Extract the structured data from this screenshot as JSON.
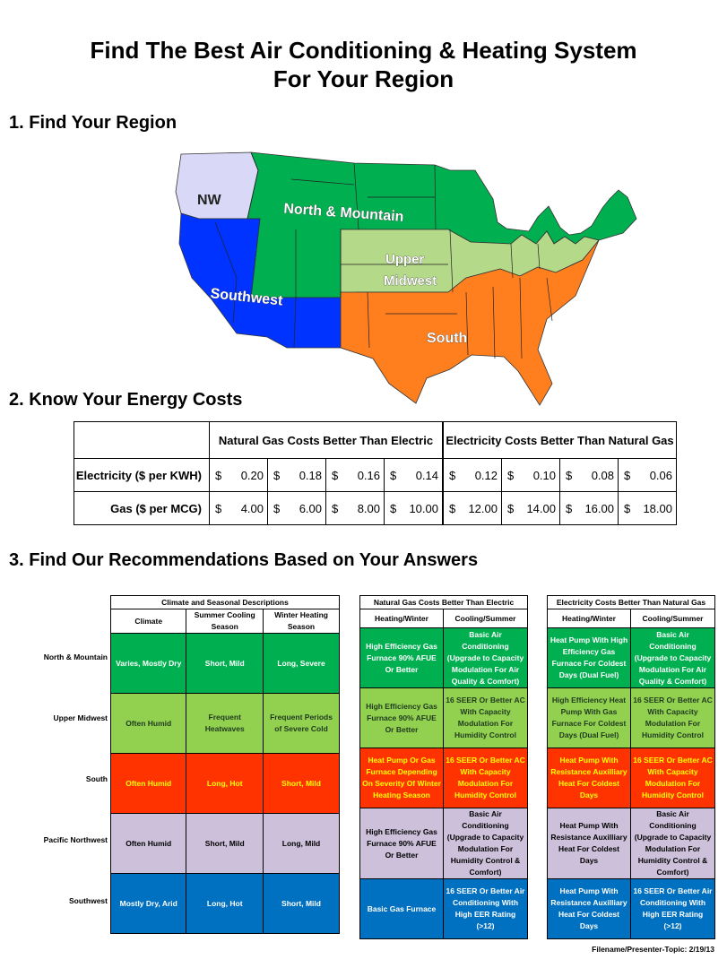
{
  "title_line1": "Find The Best Air Conditioning & Heating System",
  "title_line2": "For Your Region",
  "section1": "1. Find Your Region",
  "section2": "2. Know Your Energy Costs",
  "section3": "3. Find Our Recommendations Based on Your Answers",
  "map": {
    "labels": [
      "NW",
      "North & Mountain",
      "Upper Midwest",
      "Southwest",
      "South"
    ],
    "colors": {
      "nw": "#d9d9f7",
      "north": "#00b050",
      "midwest": "#b4d989",
      "southwest": "#0033ff",
      "south": "#ff7f1f"
    }
  },
  "costs": {
    "header_gas": "Natural Gas Costs Better Than Electric",
    "header_elec": "Electricity Costs Better Than Natural Gas",
    "currency": "$",
    "rows": [
      {
        "label": "Electricity ($ per KWH)",
        "values": [
          "0.20",
          "0.18",
          "0.16",
          "0.14",
          "0.12",
          "0.10",
          "0.08",
          "0.06"
        ]
      },
      {
        "label": "Gas ($ per MCG)",
        "values": [
          "4.00",
          "6.00",
          "8.00",
          "10.00",
          "12.00",
          "14.00",
          "16.00",
          "18.00"
        ]
      }
    ]
  },
  "rec": {
    "climate_header": "Climate and Seasonal Descriptions",
    "climate_cols": [
      "Climate",
      "Summer Cooling Season",
      "Winter Heating Season"
    ],
    "gas_header": "Natural Gas Costs Better Than Electric",
    "elec_header": "Electricity Costs Better Than Natural Gas",
    "hv_cols": [
      "Heating/Winter",
      "Cooling/Summer"
    ],
    "regions": [
      {
        "name": "North & Mountain",
        "cls": "g",
        "climate": [
          "Varies, Mostly Dry",
          "Short, Mild",
          "Long, Severe"
        ],
        "gas": [
          "High Efficiency Gas Furnace 90% AFUE Or Better",
          "Basic Air Conditioning (Upgrade to Capacity Modulation For Air Quality & Comfort)"
        ],
        "elec": [
          "Heat Pump With High Efficiency Gas Furnace For Coldest Days (Dual Fuel)",
          "Basic Air Conditioning (Upgrade to Capacity Modulation For Air Quality & Comfort)"
        ]
      },
      {
        "name": "Upper Midwest",
        "cls": "lg",
        "climate": [
          "Often Humid",
          "Frequent Heatwaves",
          "Frequent Periods of Severe Cold"
        ],
        "gas": [
          "High Efficiency Gas Furnace 90% AFUE Or Better",
          "16 SEER Or Better AC With Capacity Modulation For Humidity Control"
        ],
        "elec": [
          "High Efficiency Heat Pump With Gas Furnace For Coldest Days (Dual Fuel)",
          "16 SEER Or Better AC With Capacity Modulation For Humidity Control"
        ]
      },
      {
        "name": "South",
        "cls": "o",
        "climate": [
          "Often Humid",
          "Long, Hot",
          "Short, Mild"
        ],
        "gas": [
          "Heat Pump Or Gas Furnace Depending On Severity Of Winter Heating Season",
          "16 SEER Or Better AC With Capacity Modulation For Humidity Control"
        ],
        "elec": [
          "Heat Pump With Resistance Auxilliary Heat For Coldest Days",
          "16 SEER Or Better AC With Capacity Modulation For Humidity Control"
        ]
      },
      {
        "name": "Pacific Northwest",
        "cls": "p",
        "climate": [
          "Often Humid",
          "Short, Mild",
          "Long, Mild"
        ],
        "gas": [
          "High Efficiency Gas Furnace 90% AFUE Or Better",
          "Basic Air Conditioning (Upgrade to Capacity Modulation For Humidity Control & Comfort)"
        ],
        "elec": [
          "Heat Pump With Resistance Auxilliary Heat For Coldest Days",
          "Basic Air Conditioning (Upgrade to Capacity Modulation For Humidity Control & Comfort)"
        ]
      },
      {
        "name": "Southwest",
        "cls": "b",
        "climate": [
          "Mostly Dry, Arid",
          "Long, Hot",
          "Short, Mild"
        ],
        "gas": [
          "Basic Gas Furnace",
          "16 SEER Or Better Air Conditioning With High EER Rating (>12)"
        ],
        "elec": [
          "Heat Pump With Resistance Auxilliary Heat For Coldest Days",
          "16 SEER Or Better Air Conditioning With High EER Rating (>12)"
        ]
      }
    ]
  },
  "footer": "Filename/Presenter-Topic:  2/19/13"
}
